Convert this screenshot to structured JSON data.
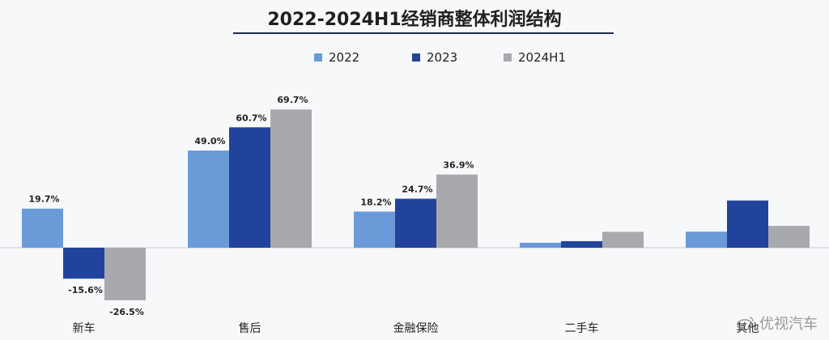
{
  "chart_data": {
    "type": "bar",
    "title": "2022-2024H1经销商整体利润结构",
    "categories": [
      "新车",
      "售后",
      "金融保险",
      "二手车",
      "其他"
    ],
    "series": [
      {
        "name": "2022",
        "color": "#6a9bd8",
        "values": [
          19.7,
          49.0,
          18.2,
          2.5,
          8.1
        ],
        "labels": [
          "19.7%",
          "49.0%",
          "18.2%",
          "",
          ""
        ]
      },
      {
        "name": "2023",
        "color": "#21439b",
        "values": [
          -15.6,
          60.7,
          24.7,
          3.3,
          23.8
        ],
        "labels": [
          "-15.6%",
          "60.7%",
          "24.7%",
          "",
          ""
        ]
      },
      {
        "name": "2024H1",
        "color": "#a8a9ad",
        "values": [
          -26.5,
          69.7,
          36.9,
          8.0,
          11.0
        ],
        "labels": [
          "-26.5%",
          "69.7%",
          "36.9%",
          "",
          ""
        ]
      }
    ],
    "xlabel": "",
    "ylabel": "",
    "grid": false,
    "legend_position": "top-center"
  },
  "watermark": {
    "text": "优视汽车",
    "icon": "weibo-icon"
  }
}
